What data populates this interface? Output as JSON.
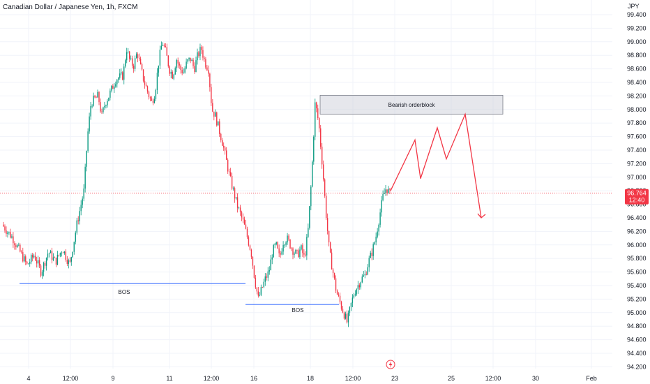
{
  "title": "Canadian Dollar / Japanese Yen, 1h, FXCM",
  "chart_data": {
    "type": "candlestick",
    "unit": "JPY",
    "y_ticks": [
      99.4,
      99.2,
      99.0,
      98.8,
      98.6,
      98.4,
      98.2,
      98.0,
      97.8,
      97.6,
      97.4,
      97.2,
      97.0,
      96.8,
      96.6,
      96.4,
      96.2,
      96.0,
      95.8,
      95.6,
      95.4,
      95.2,
      95.0,
      94.8,
      94.6,
      94.4,
      94.2
    ],
    "y_tick_labels": [
      "99.400",
      "99.200",
      "99.000",
      "98.800",
      "98.600",
      "98.400",
      "98.200",
      "98.000",
      "97.800",
      "97.600",
      "97.400",
      "97.200",
      "97.000",
      "96.800",
      "96.600",
      "96.400",
      "96.200",
      "96.000",
      "95.800",
      "95.600",
      "95.400",
      "95.200",
      "95.000",
      "94.800",
      "94.600",
      "94.400",
      "94.200"
    ],
    "ylim": [
      94.2,
      99.6
    ],
    "x_tick_labels": [
      "4",
      "12:00",
      "9",
      "11",
      "12:00",
      "16",
      "18",
      "12:00",
      "23",
      "25",
      "12:00",
      "30",
      "Feb"
    ],
    "current_price": "96.764",
    "countdown": "12:40",
    "grid": true,
    "colors": {
      "up": "#089981",
      "down": "#f23645",
      "annotation": "#f23645",
      "level": "#2962ff"
    },
    "price_path": [
      [
        0,
        96.3
      ],
      [
        3,
        96.1
      ],
      [
        5,
        95.9
      ],
      [
        7,
        95.7
      ],
      [
        9,
        95.85
      ],
      [
        11,
        95.6
      ],
      [
        13,
        95.9
      ],
      [
        15,
        95.75
      ],
      [
        17,
        95.95
      ],
      [
        19,
        95.7
      ],
      [
        21,
        96.3
      ],
      [
        23,
        96.8
      ],
      [
        24,
        97.6
      ],
      [
        25,
        98.1
      ],
      [
        27,
        98.2
      ],
      [
        28,
        97.9
      ],
      [
        29,
        98.1
      ],
      [
        30,
        98.2
      ],
      [
        32,
        98.45
      ],
      [
        34,
        98.5
      ],
      [
        35,
        98.9
      ],
      [
        36,
        98.7
      ],
      [
        37,
        98.65
      ],
      [
        38,
        98.85
      ],
      [
        39,
        98.6
      ],
      [
        40,
        98.4
      ],
      [
        42,
        98.1
      ],
      [
        43,
        98.25
      ],
      [
        44,
        98.7
      ],
      [
        45,
        99.0
      ],
      [
        46,
        98.85
      ],
      [
        47,
        98.6
      ],
      [
        48,
        98.5
      ],
      [
        49,
        98.75
      ],
      [
        50,
        98.6
      ],
      [
        51,
        98.55
      ],
      [
        52,
        98.7
      ],
      [
        53,
        98.75
      ],
      [
        54,
        98.6
      ],
      [
        55,
        98.8
      ],
      [
        56,
        98.9
      ],
      [
        57,
        98.7
      ],
      [
        58,
        98.6
      ],
      [
        59,
        98.0
      ],
      [
        60,
        97.9
      ],
      [
        62,
        97.5
      ],
      [
        64,
        97.0
      ],
      [
        66,
        96.6
      ],
      [
        68,
        96.3
      ],
      [
        70,
        95.9
      ],
      [
        71,
        95.5
      ],
      [
        72,
        95.2
      ],
      [
        73,
        95.35
      ],
      [
        74,
        95.5
      ],
      [
        75,
        95.6
      ],
      [
        76,
        95.9
      ],
      [
        77,
        96.0
      ],
      [
        78,
        95.8
      ],
      [
        79,
        96.05
      ],
      [
        80,
        96.1
      ],
      [
        81,
        96.0
      ],
      [
        82,
        95.9
      ],
      [
        83,
        95.85
      ],
      [
        84,
        95.95
      ],
      [
        85,
        95.8
      ],
      [
        86,
        96.2
      ],
      [
        87,
        97.0
      ],
      [
        88,
        98.1
      ],
      [
        89,
        97.8
      ],
      [
        90,
        97.2
      ],
      [
        91,
        96.5
      ],
      [
        92,
        95.9
      ],
      [
        93,
        95.6
      ],
      [
        94,
        95.3
      ],
      [
        95,
        95.15
      ],
      [
        96,
        95.0
      ],
      [
        97,
        94.85
      ],
      [
        98,
        95.1
      ],
      [
        99,
        95.3
      ],
      [
        100,
        95.4
      ],
      [
        101,
        95.5
      ],
      [
        102,
        95.55
      ],
      [
        103,
        95.75
      ],
      [
        104,
        95.9
      ],
      [
        105,
        96.1
      ],
      [
        106,
        96.4
      ],
      [
        107,
        96.7
      ],
      [
        108,
        96.85
      ],
      [
        109,
        96.75
      ]
    ],
    "annotations": {
      "orderblock_label": "Bearish orderblock",
      "orderblock_range": [
        97.93,
        98.21
      ],
      "bos_labels": [
        "BOS",
        "BOS"
      ],
      "bos_levels": [
        95.43,
        95.12
      ],
      "projection_path": [
        96.8,
        97.55,
        96.98,
        97.73,
        97.27,
        97.93,
        96.4
      ]
    }
  }
}
